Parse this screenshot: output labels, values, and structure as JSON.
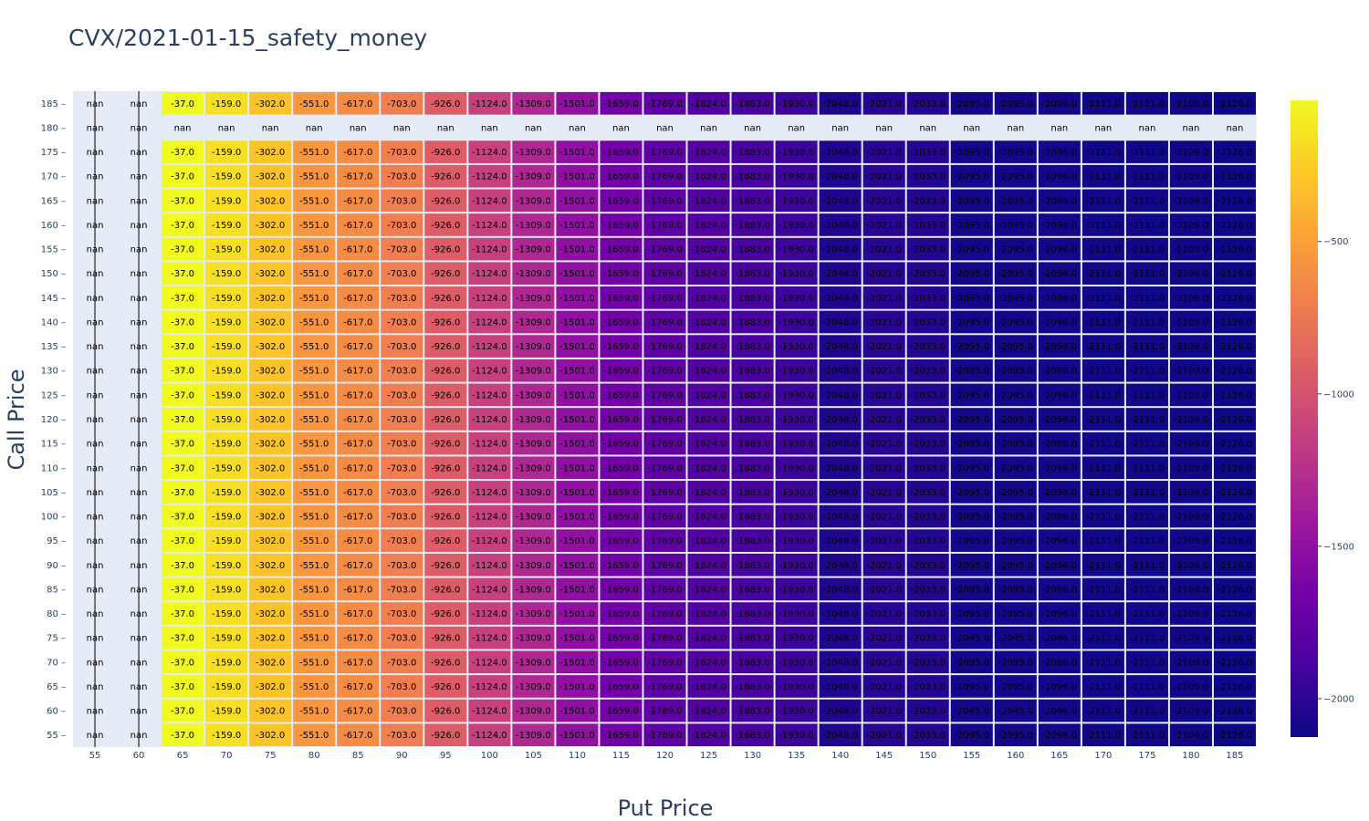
{
  "chart_data": {
    "type": "heatmap",
    "title": "CVX/2021-01-15_safety_money",
    "xlabel": "Put Price",
    "ylabel": "Call Price",
    "x": [
      "55",
      "60",
      "65",
      "70",
      "75",
      "80",
      "85",
      "90",
      "95",
      "100",
      "105",
      "110",
      "115",
      "120",
      "125",
      "130",
      "135",
      "140",
      "145",
      "150",
      "155",
      "160",
      "165",
      "170",
      "175",
      "180",
      "185"
    ],
    "y": [
      "55",
      "60",
      "65",
      "70",
      "75",
      "80",
      "85",
      "90",
      "95",
      "100",
      "105",
      "110",
      "115",
      "120",
      "125",
      "130",
      "135",
      "140",
      "145",
      "150",
      "155",
      "160",
      "165",
      "170",
      "175",
      "180",
      "185"
    ],
    "row_values": [
      null,
      null,
      -37.0,
      -159.0,
      -302.0,
      -551.0,
      -617.0,
      -703.0,
      -926.0,
      -1124.0,
      -1309.0,
      -1501.0,
      -1659.0,
      -1769.0,
      -1824.0,
      -1883.0,
      -1930.0,
      -2048.0,
      -2021.0,
      -2033.0,
      -2095.0,
      -2095.0,
      -2096.0,
      -2111.0,
      -2111.0,
      -2109.0,
      -2126.0
    ],
    "row_labels": [
      "nan",
      "nan",
      "-37.0",
      "-159.0",
      "-302.0",
      "-551.0",
      "-617.0",
      "-703.0",
      "-926.0",
      "-1124.0",
      "-1309.0",
      "-1501.0",
      "-1659.0",
      "-1769.0",
      "-1824.0",
      "-1883.0",
      "-1930.0",
      "-2048.0",
      "-2021.0",
      "-2033.0",
      "-2095.0",
      "-2095.0",
      "-2096.0",
      "-2111.0",
      "-2111.0",
      "-2109.0",
      "-2126.0"
    ],
    "nan_rows": [
      "180"
    ],
    "nan_label": "nan",
    "colorscale": "Plasma",
    "zmin": -2126,
    "zmax": -37,
    "colorbar_ticks": [
      -500,
      -1000,
      -1500,
      -2000
    ],
    "colorbar_tick_labels": [
      "−500",
      "−1000",
      "−1500",
      "−2000"
    ],
    "colors": {
      "plot_bg": "#e5ecf6",
      "text": "#2a3f5f"
    }
  }
}
